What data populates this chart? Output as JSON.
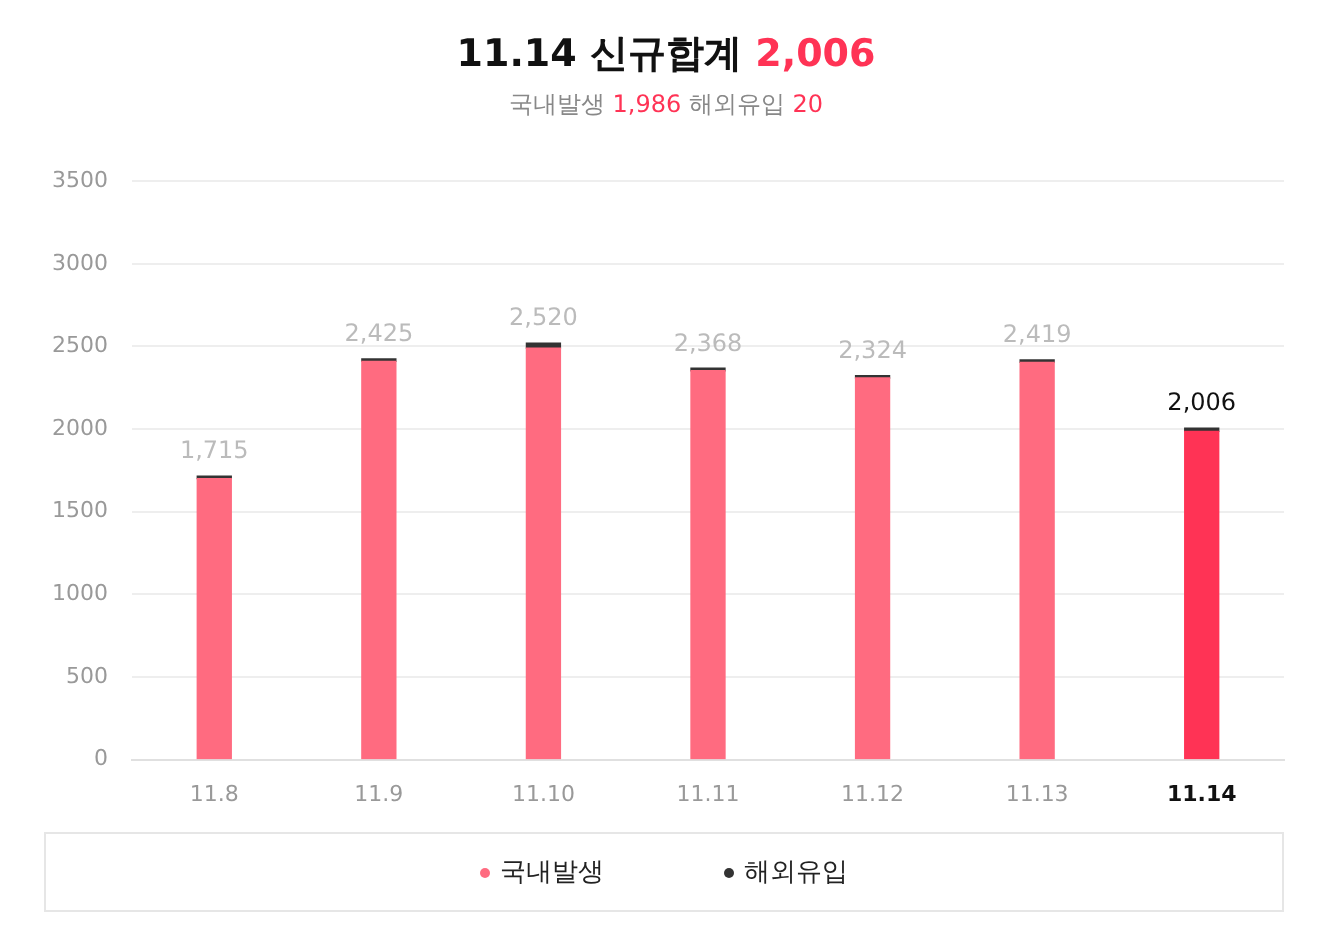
{
  "chart_data": {
    "type": "bar",
    "title": "11.14 신규합계 2,006",
    "subtitle": "국내발생 1,986  해외유입 20",
    "stacked": true,
    "categories": [
      "11.8",
      "11.9",
      "11.10",
      "11.11",
      "11.12",
      "11.13",
      "11.14"
    ],
    "series": [
      {
        "name": "국내발생",
        "color": "#ff6b80",
        "colors": [
          "#ff6b80",
          "#ff6b80",
          "#ff6b80",
          "#ff6b80",
          "#ff6b80",
          "#ff6b80",
          "#ff3355"
        ],
        "values": [
          1700,
          2410,
          2490,
          2353,
          2309,
          2404,
          1986
        ]
      },
      {
        "name": "해외유입",
        "color": "#333333",
        "values": [
          15,
          15,
          30,
          15,
          15,
          15,
          20
        ]
      }
    ],
    "totals": [
      "1,715",
      "2,425",
      "2,520",
      "2,368",
      "2,324",
      "2,419",
      "2,006"
    ],
    "ylim": [
      0,
      3500
    ],
    "yticks": [
      0,
      500,
      1000,
      1500,
      2000,
      2500,
      3000,
      3500
    ],
    "grid": "y",
    "legend": "bottom"
  }
}
